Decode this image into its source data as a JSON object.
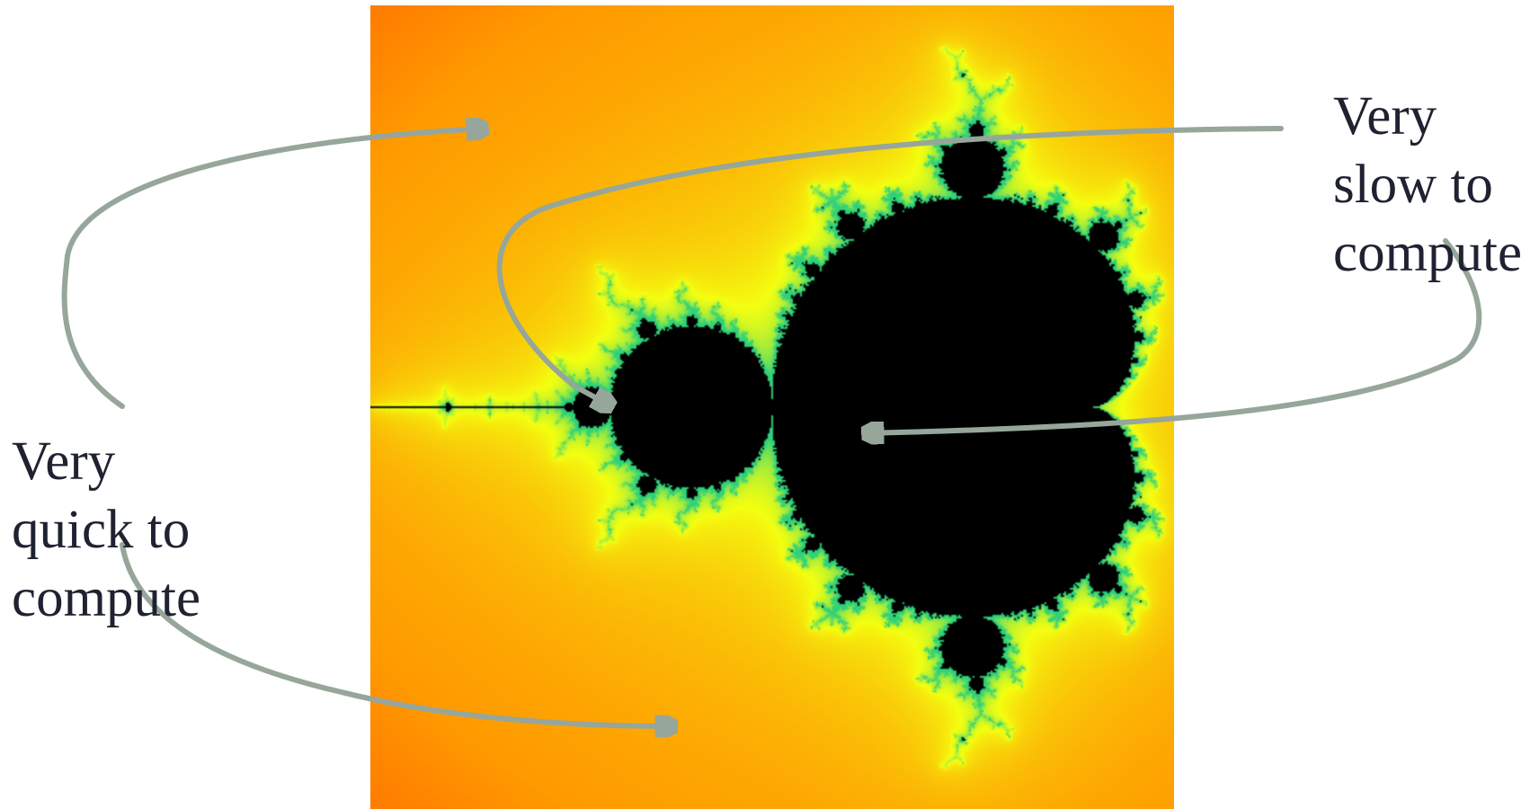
{
  "image": {
    "subject": "mandelbrot-set",
    "colors": {
      "set_interior": "#000000",
      "outer_region": "#ff0a00",
      "boundary_glow": "#ff9a00",
      "boundary_halo": "#f4ff10",
      "boundary_edge": "#2fd17a",
      "arrow": "#97a69a",
      "caption_text": "#1f2230"
    }
  },
  "annotations": {
    "quick": {
      "lines": [
        "Very",
        "quick to",
        "compute"
      ]
    },
    "slow": {
      "lines": [
        "Very",
        "slow to",
        "compute"
      ]
    }
  }
}
